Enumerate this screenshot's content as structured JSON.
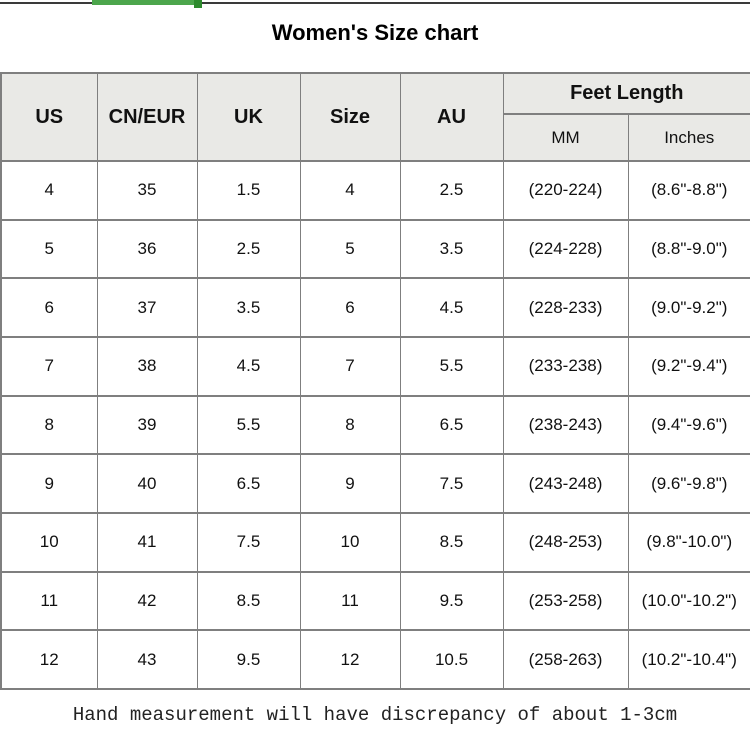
{
  "page": {
    "title": "Women's Size chart",
    "footer_note": "Hand measurement will have discrepancy of about 1-3cm"
  },
  "table": {
    "headers": {
      "us": "US",
      "cn_eur": "CN/EUR",
      "uk": "UK",
      "size": "Size",
      "au": "AU",
      "feet_length": "Feet Length",
      "mm": "MM",
      "inches": "Inches"
    },
    "rows": [
      [
        "4",
        "35",
        "1.5",
        "4",
        "2.5",
        "(220-224)",
        "(8.6\"-8.8\")"
      ],
      [
        "5",
        "36",
        "2.5",
        "5",
        "3.5",
        "(224-228)",
        "(8.8\"-9.0\")"
      ],
      [
        "6",
        "37",
        "3.5",
        "6",
        "4.5",
        "(228-233)",
        "(9.0\"-9.2\")"
      ],
      [
        "7",
        "38",
        "4.5",
        "7",
        "5.5",
        "(233-238)",
        "(9.2\"-9.4\")"
      ],
      [
        "8",
        "39",
        "5.5",
        "8",
        "6.5",
        "(238-243)",
        "(9.4\"-9.6\")"
      ],
      [
        "9",
        "40",
        "6.5",
        "9",
        "7.5",
        "(243-248)",
        "(9.6\"-9.8\")"
      ],
      [
        "10",
        "41",
        "7.5",
        "10",
        "8.5",
        "(248-253)",
        "(9.8\"-10.0\")"
      ],
      [
        "11",
        "42",
        "8.5",
        "11",
        "9.5",
        "(253-258)",
        "(10.0\"-10.2\")"
      ],
      [
        "12",
        "43",
        "9.5",
        "12",
        "10.5",
        "(258-263)",
        "(10.2\"-10.4\")"
      ]
    ]
  },
  "colors": {
    "header_bg": "#e9e9e6",
    "border": "#7f7f7f",
    "top_line": "#3a3a3a",
    "accent_green": "#4ca64c",
    "accent_green_dark": "#2e8b2e"
  }
}
